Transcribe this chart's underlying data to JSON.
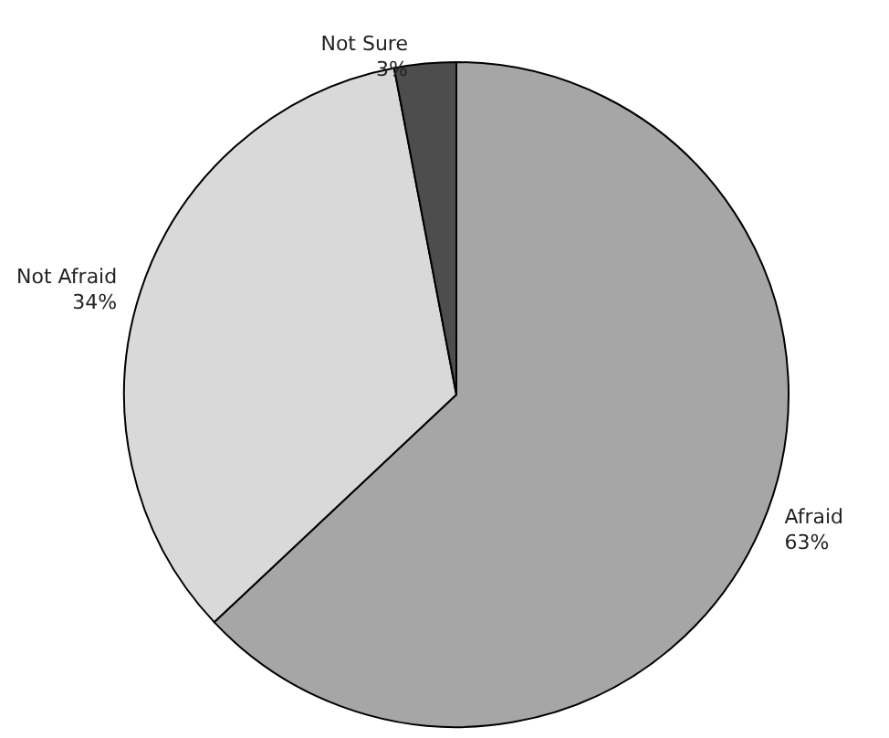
{
  "chart_data": {
    "type": "pie",
    "categories": [
      "Afraid",
      "Not Afraid",
      "Not Sure"
    ],
    "values": [
      63,
      34,
      3
    ],
    "colors": [
      "#a6a6a6",
      "#d9d9d9",
      "#4d4d4d"
    ],
    "value_labels": [
      "63%",
      "34%",
      "3%"
    ]
  }
}
